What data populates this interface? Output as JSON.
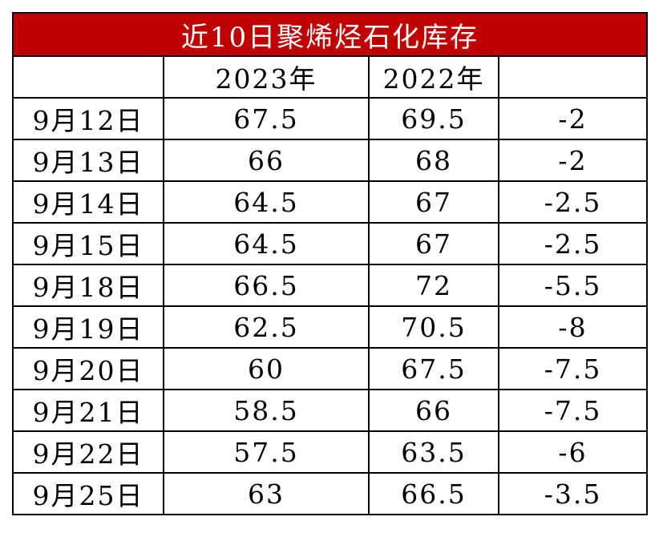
{
  "table": {
    "title": "近10日聚烯烃石化库存",
    "header": [
      "2023年",
      "2022年"
    ],
    "rows": [
      [
        "9月12日",
        67.5,
        69.5,
        -2
      ],
      [
        "9月13日",
        66,
        68,
        -2
      ],
      [
        "9月14日",
        64.5,
        67,
        -2.5
      ],
      [
        "9月15日",
        64.5,
        67,
        -2.5
      ],
      [
        "9月18日",
        66.5,
        72,
        -5.5
      ],
      [
        "9月19日",
        62.5,
        70.5,
        -8
      ],
      [
        "9月20日",
        60,
        67.5,
        -7.5
      ],
      [
        "9月21日",
        58.5,
        66,
        -7.5
      ],
      [
        "9月22日",
        57.5,
        63.5,
        -6
      ],
      [
        "9月25日",
        63,
        66.5,
        -3.5
      ]
    ]
  }
}
